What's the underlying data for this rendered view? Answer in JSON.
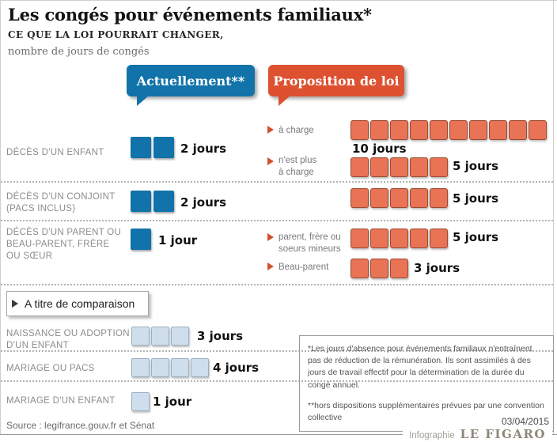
{
  "header": {
    "title": "Les congés pour événements familiaux*",
    "subtitle": "CE QUE LA LOI POURRAIT CHANGER,",
    "unit_note": "nombre de jours de congés"
  },
  "legend": {
    "current": "Actuellement**",
    "proposal": "Proposition de loi"
  },
  "rows": [
    {
      "label_lines": [
        "DÉCÈS D'UN ENFANT"
      ],
      "current": {
        "count": 2,
        "text": "2 jours"
      },
      "proposal": [
        {
          "label_lines": [
            "à charge"
          ],
          "count": 10,
          "text": "10 jours"
        },
        {
          "label_lines": [
            "n'est plus",
            "à charge"
          ],
          "count": 5,
          "text": "5 jours"
        }
      ]
    },
    {
      "label_lines": [
        "DÉCÈS D'UN CONJOINT",
        "(PACS INCLUS)"
      ],
      "current": {
        "count": 2,
        "text": "2 jours"
      },
      "proposal": [
        {
          "label_lines": [],
          "count": 5,
          "text": "5 jours"
        }
      ]
    },
    {
      "label_lines": [
        "DÉCÈS D'UN PARENT OU",
        "BEAU-PARENT, FRÈRE",
        "OU SŒUR"
      ],
      "current": {
        "count": 1,
        "text": "1 jour"
      },
      "proposal": [
        {
          "label_lines": [
            "parent, frère ou",
            "soeurs mineurs"
          ],
          "count": 5,
          "text": "5 jours"
        },
        {
          "label_lines": [
            "Beau-parent"
          ],
          "count": 3,
          "text": "3 jours"
        }
      ]
    }
  ],
  "comparison": {
    "button_label": "A titre de comparaison",
    "rows": [
      {
        "label_lines": [
          "NAISSANCE OU ADOPTION",
          "D'UN ENFANT"
        ],
        "count": 3,
        "text": "3 jours"
      },
      {
        "label_lines": [
          "MARIAGE OU PACS"
        ],
        "count": 4,
        "text": "4 jours"
      },
      {
        "label_lines": [
          "MARIAGE D'UN ENFANT"
        ],
        "count": 1,
        "text": "1 jour"
      }
    ]
  },
  "footnotes": {
    "para1": "*Les jours d'absence pour événements familiaux n'entraînent pas de réduction de la rémunération. Ils sont assimilés à des jours de travail effectif pour la détermination de la durée du congé annuel.",
    "para2": "**hors dispositions supplémentaires prévues par une convention collective"
  },
  "footer": {
    "source": "Source : legifrance.gouv.fr et Sénat",
    "date": "03/04/2015",
    "credit_label": "Infographie",
    "credit_brand": "LE FIGARO"
  },
  "colors": {
    "blue": "#1173a9",
    "orange": "#dd5130",
    "orange_square": "#e87355",
    "light_square": "#cfdeed",
    "triangle": "#d2502c"
  },
  "chart_data": {
    "type": "bar",
    "title": "Les congés pour événements familiaux*",
    "subtitle": "CE QUE LA LOI POURRAIT CHANGER,",
    "unit": "nombre de jours de congés",
    "legend": [
      "Actuellement**",
      "Proposition de loi"
    ],
    "legend_position": "top",
    "series": [
      {
        "name": "Actuellement**",
        "values": [
          {
            "category": "Décès d'un enfant",
            "jours": 2
          },
          {
            "category": "Décès d'un conjoint (Pacs inclus)",
            "jours": 2
          },
          {
            "category": "Décès d'un parent ou beau-parent, frère ou sœur",
            "jours": 1
          }
        ]
      },
      {
        "name": "Proposition de loi",
        "values": [
          {
            "category": "Décès d'un enfant — à charge",
            "jours": 10
          },
          {
            "category": "Décès d'un enfant — n'est plus à charge",
            "jours": 5
          },
          {
            "category": "Décès d'un conjoint (Pacs inclus)",
            "jours": 5
          },
          {
            "category": "Décès d'un parent, frère ou soeurs mineurs",
            "jours": 5
          },
          {
            "category": "Décès d'un beau-parent",
            "jours": 3
          }
        ]
      },
      {
        "name": "A titre de comparaison",
        "values": [
          {
            "category": "Naissance ou adoption d'un enfant",
            "jours": 3
          },
          {
            "category": "Mariage ou Pacs",
            "jours": 4
          },
          {
            "category": "Mariage d'un enfant",
            "jours": 1
          }
        ]
      }
    ]
  }
}
